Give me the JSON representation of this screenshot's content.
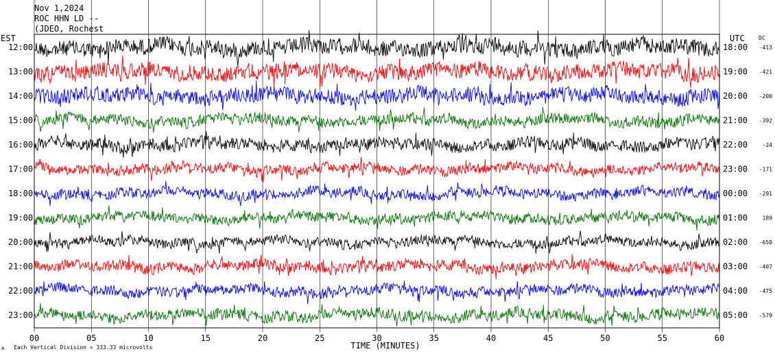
{
  "header": {
    "line1": "Nov 1,2024",
    "line2": "ROC HHN LD --",
    "line3": "(JDEO, Rochest"
  },
  "left_axis_label": "EST",
  "right_axis_label": "UTC",
  "dc_label": "DC",
  "footer": {
    "icon_text": "A",
    "scale_note": "Each Vertical Division =  333.33 microvolts"
  },
  "colors": {
    "black": "#000000",
    "red": "#ff0000",
    "blue": "#0000ff",
    "green": "#007000"
  },
  "chart_data": {
    "type": "line",
    "title": "Nov 1,2024 ROC HHN LD -- (JDEO, Rochest",
    "xlabel": "TIME (MINUTES)",
    "xlim": [
      0,
      60
    ],
    "x_ticks": [
      "00",
      "05",
      "10",
      "15",
      "20",
      "25",
      "30",
      "35",
      "40",
      "45",
      "50",
      "55",
      "60"
    ],
    "rows": [
      {
        "est": "12:00",
        "utc": "18:00",
        "dc": "-413",
        "color": "black",
        "activity": 1.0
      },
      {
        "est": "13:00",
        "utc": "19:00",
        "dc": "-421",
        "color": "red",
        "activity": 1.0
      },
      {
        "est": "14:00",
        "utc": "20:00",
        "dc": "-200",
        "color": "blue",
        "activity": 0.9
      },
      {
        "est": "15:00",
        "utc": "21:00",
        "dc": "-392",
        "color": "green",
        "activity": 0.55
      },
      {
        "est": "16:00",
        "utc": "22:00",
        "dc": "-24",
        "color": "black",
        "activity": 0.6
      },
      {
        "est": "17:00",
        "utc": "23:00",
        "dc": "-171",
        "color": "red",
        "activity": 0.45
      },
      {
        "est": "18:00",
        "utc": "00:00",
        "dc": "-291",
        "color": "blue",
        "activity": 0.4
      },
      {
        "est": "19:00",
        "utc": "01:00",
        "dc": "189",
        "color": "green",
        "activity": 0.45
      },
      {
        "est": "20:00",
        "utc": "02:00",
        "dc": "-659",
        "color": "black",
        "activity": 0.4
      },
      {
        "est": "21:00",
        "utc": "03:00",
        "dc": "-407",
        "color": "red",
        "activity": 0.5
      },
      {
        "est": "22:00",
        "utc": "04:00",
        "dc": "-475",
        "color": "blue",
        "activity": 0.45
      },
      {
        "est": "23:00",
        "utc": "05:00",
        "dc": "-579",
        "color": "green",
        "activity": 0.5
      }
    ]
  }
}
